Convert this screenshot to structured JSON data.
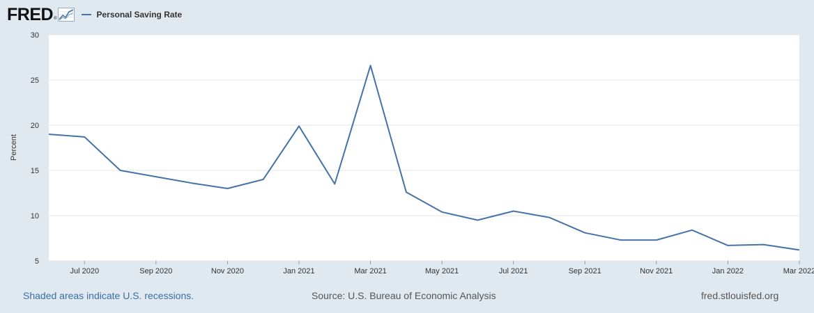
{
  "brand": {
    "logo_text": "FRED",
    "registered": "®"
  },
  "chart_data": {
    "type": "line",
    "title": "",
    "ylabel": "Percent",
    "xlabel": "",
    "ylim": [
      5,
      30
    ],
    "yticks": [
      5,
      10,
      15,
      20,
      25,
      30
    ],
    "xticks": [
      "2020-07",
      "2020-09",
      "2020-11",
      "2021-01",
      "2021-03",
      "2021-05",
      "2021-07",
      "2021-09",
      "2021-11",
      "2022-01",
      "2022-03"
    ],
    "xtick_labels": [
      "Jul 2020",
      "Sep 2020",
      "Nov 2020",
      "Jan 2021",
      "Mar 2021",
      "May 2021",
      "Jul 2021",
      "Sep 2021",
      "Nov 2021",
      "Jan 2022",
      "Mar 2022"
    ],
    "grid": true,
    "legend_position": "top-left",
    "colors": {
      "series": "#4572a7",
      "background": "#e1e9f0",
      "plot": "#ffffff",
      "grid": "#e6e6e6"
    },
    "series": [
      {
        "name": "Personal Saving Rate",
        "x": [
          "2020-06",
          "2020-07",
          "2020-08",
          "2020-09",
          "2020-10",
          "2020-11",
          "2020-12",
          "2021-01",
          "2021-02",
          "2021-03",
          "2021-04",
          "2021-05",
          "2021-06",
          "2021-07",
          "2021-08",
          "2021-09",
          "2021-10",
          "2021-11",
          "2021-12",
          "2022-01",
          "2022-02",
          "2022-03"
        ],
        "y": [
          19.0,
          18.7,
          15.0,
          14.3,
          13.6,
          13.0,
          14.0,
          19.9,
          13.5,
          26.6,
          12.6,
          10.4,
          9.5,
          10.5,
          9.8,
          8.1,
          7.3,
          7.3,
          8.4,
          6.7,
          6.8,
          6.2
        ]
      }
    ]
  },
  "footer": {
    "recessions_note": "Shaded areas indicate U.S. recessions.",
    "source": "Source: U.S. Bureau of Economic Analysis",
    "site": "fred.stlouisfed.org"
  }
}
